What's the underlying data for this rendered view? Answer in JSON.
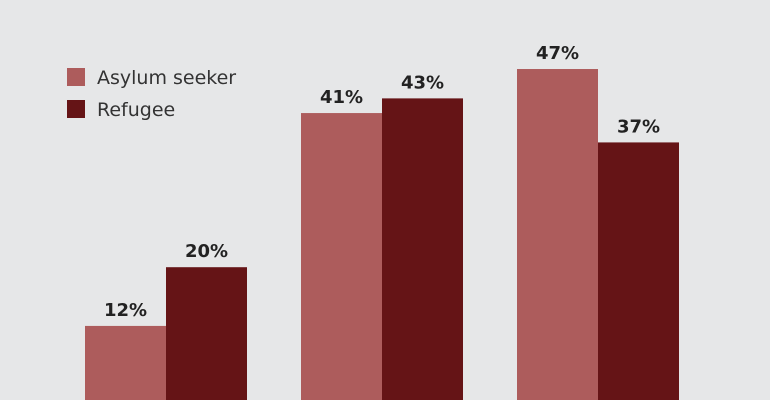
{
  "chart_data": {
    "type": "bar",
    "categories": [
      null,
      null,
      null
    ],
    "series": [
      {
        "name": "Asylum seeker",
        "color": "#ad5c5c",
        "values": [
          12,
          41,
          47
        ],
        "value_labels": [
          "12%",
          "41%",
          "47%"
        ]
      },
      {
        "name": "Refugee",
        "color": "#651416",
        "values": [
          20,
          43,
          37
        ],
        "value_labels": [
          "20%",
          "43%",
          "37%"
        ]
      }
    ],
    "legend": "upper left"
  }
}
